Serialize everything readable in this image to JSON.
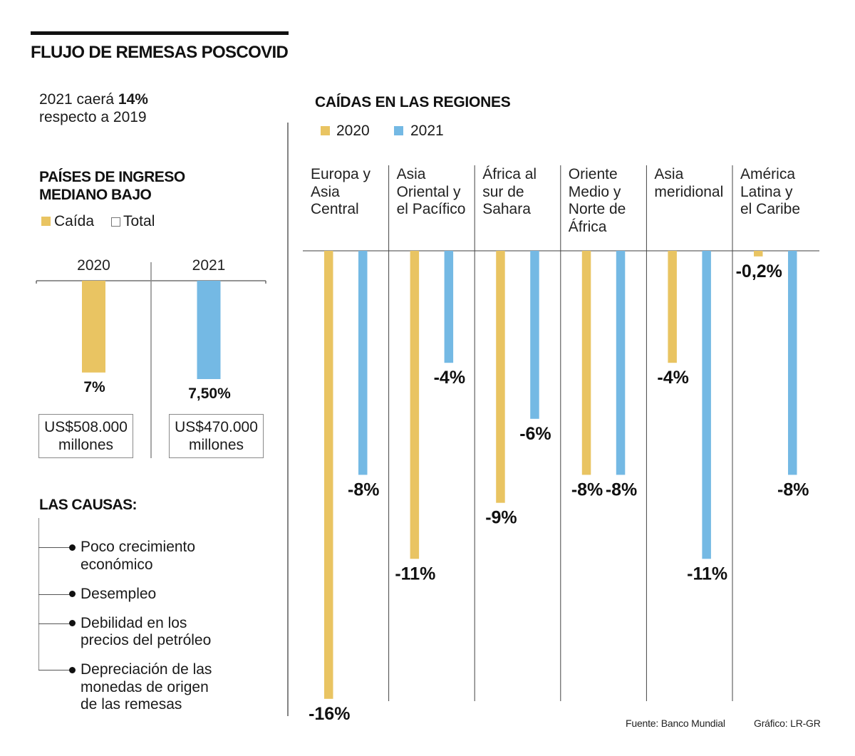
{
  "header": {
    "title": "FLUJO DE REMESAS POSCOVID"
  },
  "summary": {
    "prefix": "2021 caerá ",
    "highlight": "14%",
    "suffix": "respecto a 2019"
  },
  "causes": {
    "title": "LAS CAUSAS:",
    "items": [
      "Poco crecimiento económico",
      "Desempleo",
      "Debilidad en los precios del petróleo",
      "Depreciación de las monedas de origen de las remesas"
    ]
  },
  "footer": {
    "source": "Fuente: Banco Mundial",
    "credit": "Gráfico: LR-GR"
  },
  "colors": {
    "series_2020": "#E9C462",
    "series_2021": "#74B9E4",
    "text": "#111111",
    "rule": "#555555"
  },
  "chart_data": [
    {
      "type": "bar",
      "title": "PAÍSES DE INGRESO MEDIANO BAJO",
      "legend": [
        "Caída",
        "Total"
      ],
      "legend_position": "top-left",
      "categories": [
        "2020",
        "2021"
      ],
      "series": [
        {
          "name": "Caída",
          "values": [
            -7,
            -7.5
          ],
          "labels": [
            "7%",
            "7,50%"
          ]
        }
      ],
      "totals": [
        "US$508.000 millones",
        "US$470.000 millones"
      ],
      "xlabel": "",
      "ylabel": "",
      "ylim": [
        -8,
        0
      ],
      "grid": false
    },
    {
      "type": "bar",
      "title": "CAÍDAS EN LAS REGIONES",
      "legend": [
        "2020",
        "2021"
      ],
      "legend_position": "top-left",
      "categories": [
        "Europa y Asia Central",
        "Asia Oriental y el Pacífico",
        "África al sur de Sahara",
        "Oriente Medio y Norte de África",
        "Asia meridional",
        "América Latina y el Caribe"
      ],
      "category_lines": [
        [
          "Europa y",
          "Asia",
          "Central"
        ],
        [
          "Asia",
          "Oriental y",
          "el Pacífico"
        ],
        [
          "África al",
          "sur de",
          "Sahara"
        ],
        [
          "Oriente",
          "Medio y",
          "Norte de",
          "África"
        ],
        [
          "Asia",
          "meridional"
        ],
        [
          "América",
          "Latina y",
          "el Caribe"
        ]
      ],
      "series": [
        {
          "name": "2020",
          "values": [
            -16,
            -11,
            -9,
            -8,
            -4,
            -0.2
          ],
          "labels": [
            "-16%",
            "-11%",
            "-9%",
            "-8%",
            "-4%",
            "-0,2%"
          ]
        },
        {
          "name": "2021",
          "values": [
            -8,
            -4,
            -6,
            -8,
            -11,
            -8
          ],
          "labels": [
            "-8%",
            "-4%",
            "-6%",
            "-8%",
            "-11%",
            "-8%"
          ]
        }
      ],
      "xlabel": "",
      "ylabel": "",
      "ylim": [
        -16,
        0
      ],
      "grid": false
    }
  ]
}
